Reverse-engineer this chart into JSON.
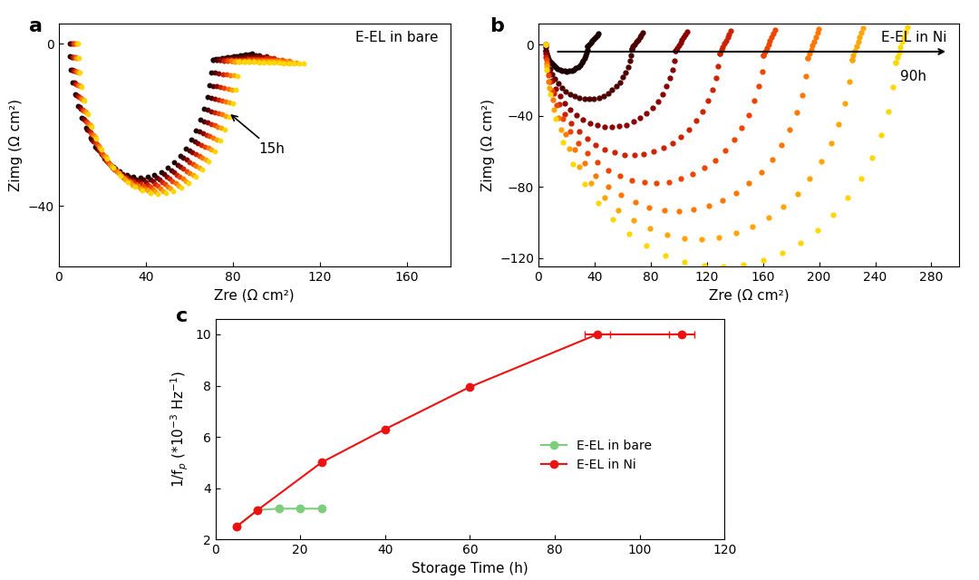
{
  "panel_a_title": "E-EL in bare",
  "panel_b_title": "E-EL in Ni",
  "panel_a_xlabel": "Zre (Ω cm²)",
  "panel_a_ylabel": "Zimg (Ω cm²)",
  "panel_b_xlabel": "Zre (Ω cm²)",
  "panel_b_ylabel": "Zimg (Ω cm²)",
  "panel_c_xlabel": "Storage Time (h)",
  "panel_c_ylabel": "1/f$_p$ (*10$^{-3}$ Hz$^{-1}$)",
  "panel_a_annotation": "15h",
  "panel_b_annotation": "90h",
  "panel_a_xlim": [
    0,
    180
  ],
  "panel_a_ylim": [
    -55,
    5
  ],
  "panel_b_xlim": [
    0,
    300
  ],
  "panel_b_ylim": [
    -125,
    12
  ],
  "panel_c_xlim": [
    0,
    120
  ],
  "panel_c_ylim": [
    2.0,
    10.6
  ],
  "panel_c_yticks": [
    2.0,
    4.0,
    6.0,
    8.0,
    10.0
  ],
  "panel_c_xticks": [
    0,
    20,
    40,
    60,
    80,
    100,
    120
  ],
  "colors_prog": [
    "#1a0000",
    "#4d0000",
    "#8B0000",
    "#CC2200",
    "#EE4400",
    "#FF7700",
    "#FFA500",
    "#FFD700"
  ],
  "green_color": "#7CCD7C",
  "red_color": "#EE1111",
  "legend_label_bare": "E-EL in bare",
  "legend_label_ni": "E-EL in Ni",
  "panel_c_bare_x": [
    5,
    10,
    15,
    20,
    25
  ],
  "panel_c_bare_y": [
    2.5,
    3.15,
    3.2,
    3.2,
    3.2
  ],
  "panel_c_ni_x": [
    5,
    10,
    25,
    40,
    60,
    90,
    110
  ],
  "panel_c_ni_y": [
    2.5,
    3.15,
    5.0,
    6.3,
    7.95,
    10.0,
    10.0
  ]
}
